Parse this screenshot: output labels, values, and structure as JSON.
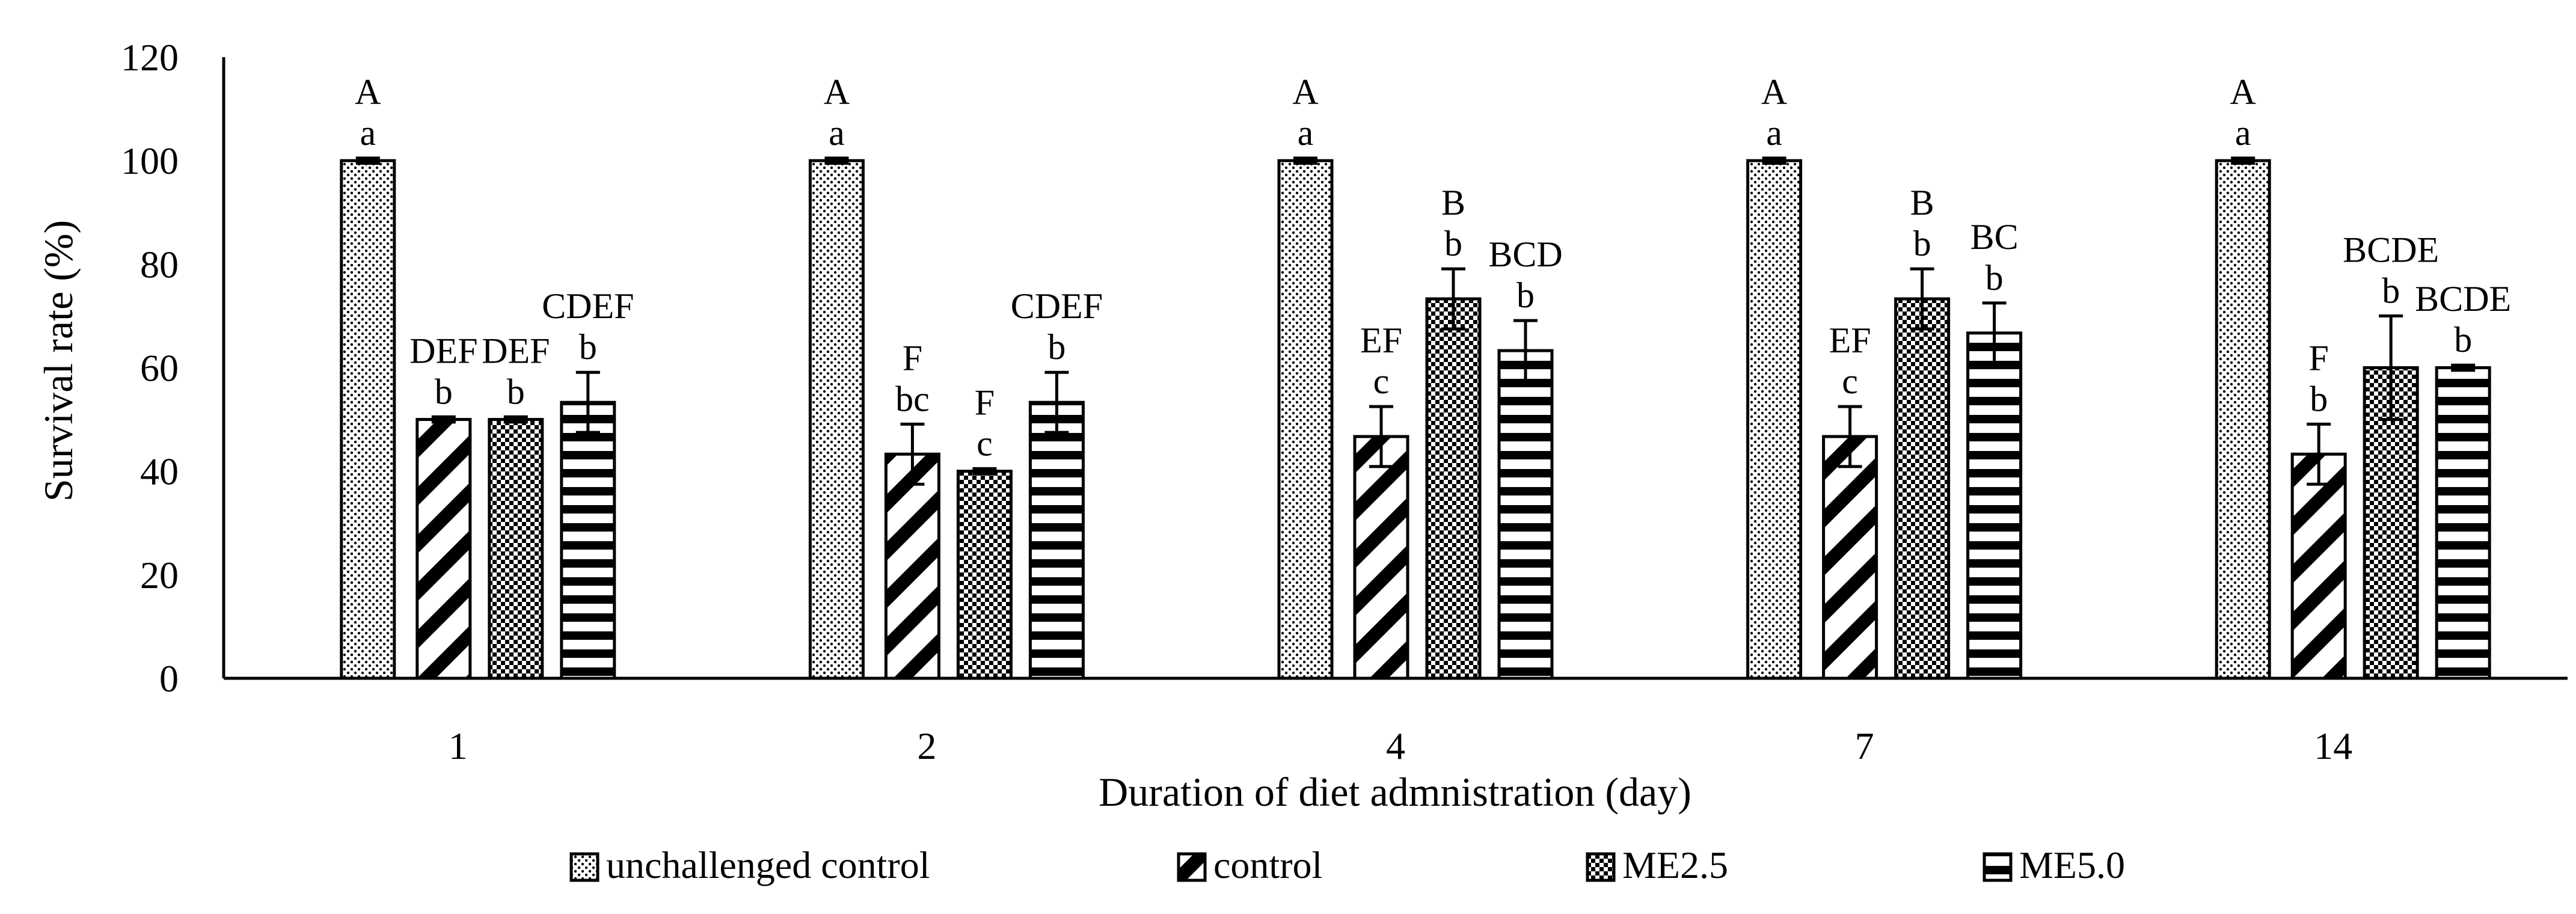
{
  "chart_data": {
    "type": "bar",
    "title": "",
    "xlabel": "Duration of diet admnistration (day)",
    "ylabel": "Survival rate (%)",
    "ylim": [
      0,
      120
    ],
    "yticks": [
      "0",
      "20",
      "40",
      "60",
      "80",
      "100",
      "120"
    ],
    "grid": false,
    "legend_position": "bottom",
    "categories": [
      "1",
      "2",
      "4",
      "7",
      "14"
    ],
    "series": [
      {
        "name": "unchallenged control",
        "pattern": "dots",
        "values": [
          100,
          100,
          100,
          100,
          100
        ],
        "errors": [
          0.5,
          0.5,
          0.5,
          0.5,
          0.5
        ],
        "labels_upper": [
          "A",
          "A",
          "A",
          "A",
          "A"
        ],
        "labels_lower": [
          "a",
          "a",
          "a",
          "a",
          "a"
        ]
      },
      {
        "name": "control",
        "pattern": "diagonal",
        "values": [
          50,
          43.3,
          46.7,
          46.7,
          43.3
        ],
        "errors": [
          0.5,
          5.8,
          5.8,
          5.8,
          5.8
        ],
        "labels_upper": [
          "DEF",
          "F",
          "EF",
          "EF",
          "F"
        ],
        "labels_lower": [
          "b",
          "bc",
          "c",
          "c",
          "b"
        ]
      },
      {
        "name": "ME2.5",
        "pattern": "grid",
        "values": [
          50,
          40,
          73.3,
          73.3,
          60
        ],
        "errors": [
          0.5,
          0.5,
          5.8,
          5.8,
          10
        ],
        "labels_upper": [
          "DEF",
          "F",
          "B",
          "B",
          "BCDE"
        ],
        "labels_lower": [
          "b",
          "c",
          "b",
          "b",
          "b"
        ]
      },
      {
        "name": "ME5.0",
        "pattern": "horizontal",
        "values": [
          53.3,
          53.3,
          63.3,
          66.7,
          60
        ],
        "errors": [
          5.8,
          5.8,
          5.8,
          5.8,
          0.5
        ],
        "labels_upper": [
          "CDEF",
          "CDEF",
          "BCD",
          "BC",
          "BCDE"
        ],
        "labels_lower": [
          "b",
          "b",
          "b",
          "b",
          "b"
        ]
      }
    ]
  }
}
